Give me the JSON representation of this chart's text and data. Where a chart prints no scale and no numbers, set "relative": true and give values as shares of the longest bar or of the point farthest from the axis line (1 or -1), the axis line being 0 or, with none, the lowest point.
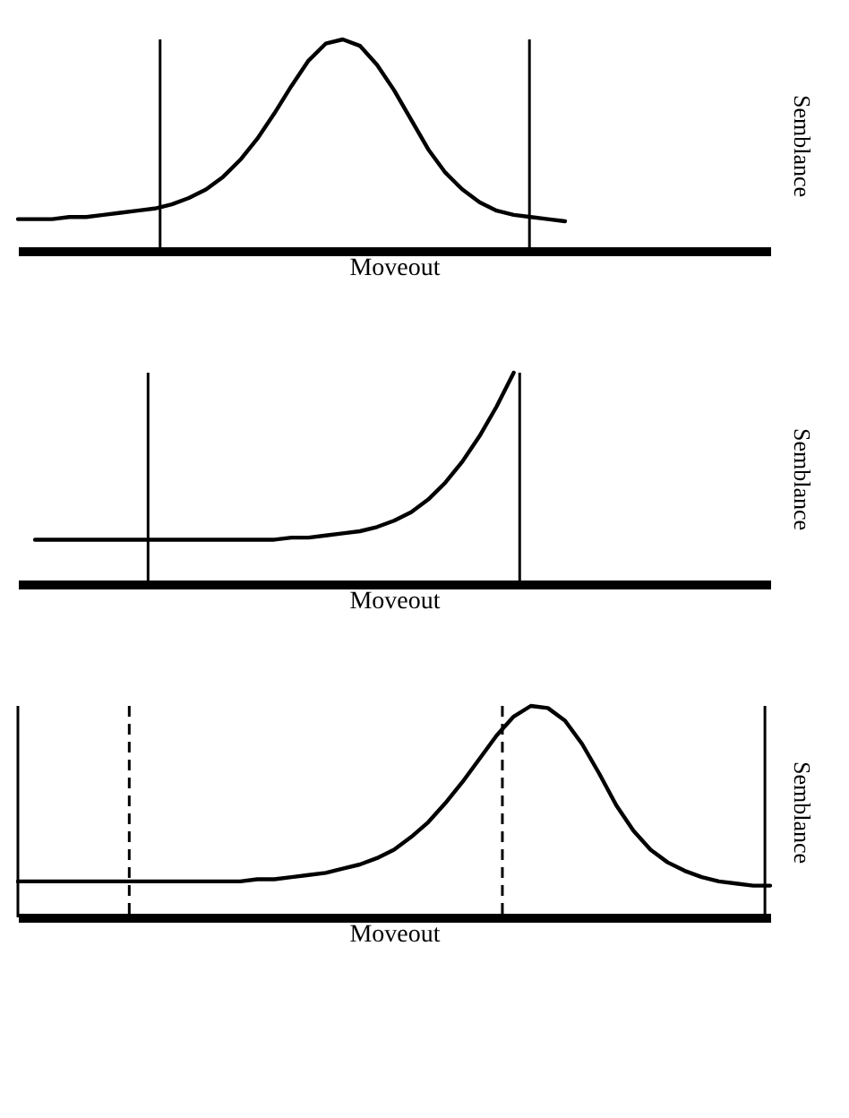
{
  "chart_data": [
    {
      "type": "line",
      "relative": true,
      "xlabel": "Moveout",
      "ylabel": "Semblance",
      "categories": [
        null,
        null,
        null,
        null,
        null,
        null,
        null,
        null,
        null,
        null,
        null,
        null,
        null,
        null,
        null,
        null,
        null,
        null,
        null,
        null,
        null,
        null,
        null,
        null,
        null,
        null,
        null,
        null,
        null,
        null,
        null,
        null,
        null,
        null,
        null,
        null,
        null,
        null,
        null,
        null,
        null,
        null,
        null,
        null,
        null
      ],
      "series": [
        {
          "color": "#000000",
          "line_style": "solid",
          "values": [
            0.15,
            0.15,
            0.15,
            0.16,
            0.16,
            0.17,
            0.18,
            0.19,
            0.2,
            0.22,
            0.25,
            0.29,
            0.35,
            0.43,
            0.53,
            0.65,
            0.78,
            0.9,
            0.98,
            1,
            0.97,
            0.88,
            0.76,
            0.62,
            0.48,
            0.37,
            0.29,
            0.23,
            0.19,
            0.17,
            0.16,
            0.15,
            0.14,
            null,
            null,
            null,
            null,
            null,
            null,
            null,
            null,
            null,
            null,
            null,
            null
          ]
        }
      ]
    },
    {
      "type": "line",
      "relative": true,
      "xlabel": "Moveout",
      "ylabel": "Semblance",
      "categories": [
        null,
        null,
        null,
        null,
        null,
        null,
        null,
        null,
        null,
        null,
        null,
        null,
        null,
        null,
        null,
        null,
        null,
        null,
        null,
        null,
        null,
        null,
        null,
        null,
        null,
        null,
        null,
        null,
        null,
        null,
        null,
        null,
        null,
        null,
        null,
        null,
        null,
        null,
        null,
        null,
        null,
        null,
        null,
        null,
        null
      ],
      "series": [
        {
          "color": "#000000",
          "line_style": "solid",
          "values": [
            null,
            0.21,
            0.21,
            0.21,
            0.21,
            0.21,
            0.21,
            0.21,
            0.21,
            0.21,
            0.21,
            0.21,
            0.21,
            0.21,
            0.21,
            0.21,
            0.22,
            0.22,
            0.23,
            0.24,
            0.25,
            0.27,
            0.3,
            0.34,
            0.4,
            0.48,
            0.58,
            0.7,
            0.84,
            1,
            null,
            null,
            null,
            null,
            null,
            null,
            null,
            null,
            null,
            null,
            null,
            null,
            null,
            null,
            null
          ]
        }
      ]
    },
    {
      "type": "line",
      "relative": true,
      "xlabel": "Moveout",
      "ylabel": "Semblance",
      "categories": [
        null,
        null,
        null,
        null,
        null,
        null,
        null,
        null,
        null,
        null,
        null,
        null,
        null,
        null,
        null,
        null,
        null,
        null,
        null,
        null,
        null,
        null,
        null,
        null,
        null,
        null,
        null,
        null,
        null,
        null,
        null,
        null,
        null,
        null,
        null,
        null,
        null,
        null,
        null,
        null,
        null,
        null,
        null,
        null,
        null
      ],
      "series": [
        {
          "color": "#000000",
          "line_style": "solid",
          "values": [
            0.17,
            0.17,
            0.17,
            0.17,
            0.17,
            0.17,
            0.17,
            0.17,
            0.17,
            0.17,
            0.17,
            0.17,
            0.17,
            0.17,
            0.18,
            0.18,
            0.19,
            0.2,
            0.21,
            0.23,
            0.25,
            0.28,
            0.32,
            0.38,
            0.45,
            0.54,
            0.64,
            0.75,
            0.86,
            0.95,
            1,
            0.99,
            0.93,
            0.82,
            0.68,
            0.53,
            0.41,
            0.32,
            0.26,
            0.22,
            0.19,
            0.17,
            0.16,
            0.15,
            0.15
          ]
        }
      ]
    }
  ]
}
